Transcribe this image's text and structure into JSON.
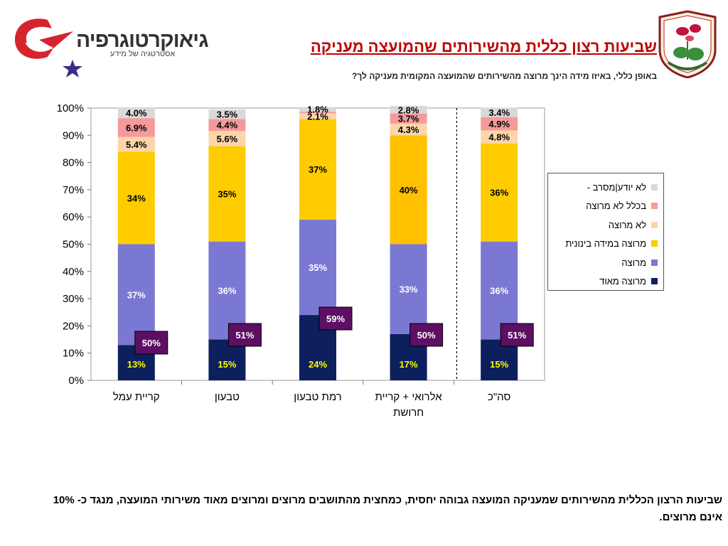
{
  "header": {
    "title": "שביעות רצון כללית מהשירותים שהמועצה מעניקה",
    "subtitle": "באופן כללי, באיזו מידה הינך מרוצה מהשירותים שהמועצה המקומית מעניקה לך?",
    "logo_word": "גיאוקרטוגרפיה",
    "logo_tagline": "אסטרטגיה של מידע"
  },
  "footer": {
    "text": "שביעות הרצון הכללית מהשירותים שמעניקה המועצה גבוהה יחסית, כמחצית מהתושבים מרוצים ומרוצים מאוד משירותי המועצה, מנגד כ- 10% אינם מרוצים."
  },
  "colors": {
    "very_satisfied": "#0d1f5c",
    "satisfied": "#7b78d4",
    "moderately": "#ffcc00",
    "moderately_alt": "#ffc000",
    "not_satisfied": "#fcd5a8",
    "not_at_all": "#f59a9a",
    "dont_know": "#d9d9d9",
    "callout": "#5c0f63",
    "title": "#c00000"
  },
  "chart_data": {
    "type": "bar",
    "stacked": true,
    "categories": [
      "קריית עמל",
      "טבעון",
      "רמת טבעון",
      "אלרואי + קריית חרושת",
      "סה\"כ"
    ],
    "series": [
      {
        "name": "מרוצה מאוד",
        "values": [
          13,
          15,
          24,
          17,
          15
        ],
        "labels": [
          "13%",
          "15%",
          "24%",
          "17%",
          "15%"
        ]
      },
      {
        "name": "מרוצה",
        "values": [
          37,
          36,
          35,
          33,
          36
        ],
        "labels": [
          "37%",
          "36%",
          "35%",
          "33%",
          "36%"
        ]
      },
      {
        "name": "מרוצה במידה בינונית",
        "values": [
          34,
          35,
          37,
          40,
          36
        ],
        "labels": [
          "34%",
          "35%",
          "37%",
          "40%",
          "36%"
        ]
      },
      {
        "name": "לא מרוצה",
        "values": [
          5.4,
          5.6,
          2.1,
          4.3,
          4.8
        ],
        "labels": [
          "5.4%",
          "5.6%",
          "2.1%",
          "4.3%",
          "4.8%"
        ]
      },
      {
        "name": "בכלל לא מרוצה",
        "values": [
          6.9,
          4.4,
          0.5,
          3.7,
          4.9
        ],
        "labels": [
          "6.9%",
          "4.4%",
          "",
          "3.7%",
          "4.9%"
        ]
      },
      {
        "name": "לא יודע|מסרב -",
        "values": [
          4.0,
          3.5,
          1.8,
          2.8,
          3.4
        ],
        "labels": [
          "4.0%",
          "3.5%",
          "1.8%",
          "2.8%",
          "3.4%"
        ]
      }
    ],
    "callouts": [
      "50%",
      "51%",
      "59%",
      "50%",
      "51%"
    ],
    "yticks": [
      "0%",
      "10%",
      "20%",
      "30%",
      "40%",
      "50%",
      "60%",
      "70%",
      "80%",
      "90%",
      "100%"
    ],
    "ylim": [
      0,
      100
    ],
    "legend_position": "right",
    "separator_before_last": true
  }
}
